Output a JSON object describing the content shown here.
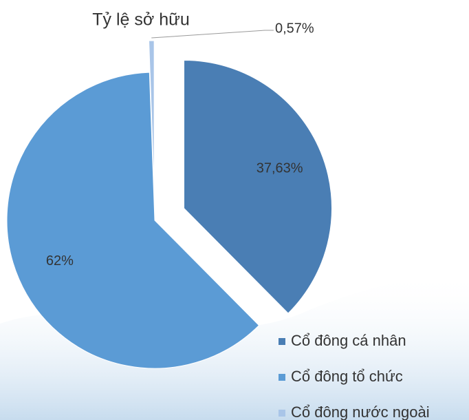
{
  "chart_data": {
    "type": "pie",
    "title": "Tỷ lệ sở hữu",
    "categories": [
      "Cổ đông cá nhân",
      "Cổ đông tổ chức",
      "Cổ đông nước ngoài"
    ],
    "values": [
      37.63,
      62,
      0.57
    ],
    "value_labels": [
      "37,63%",
      "62%",
      "0,57%"
    ],
    "colors": [
      "#4a7eb4",
      "#5b9bd5",
      "#a9c5e8"
    ]
  }
}
